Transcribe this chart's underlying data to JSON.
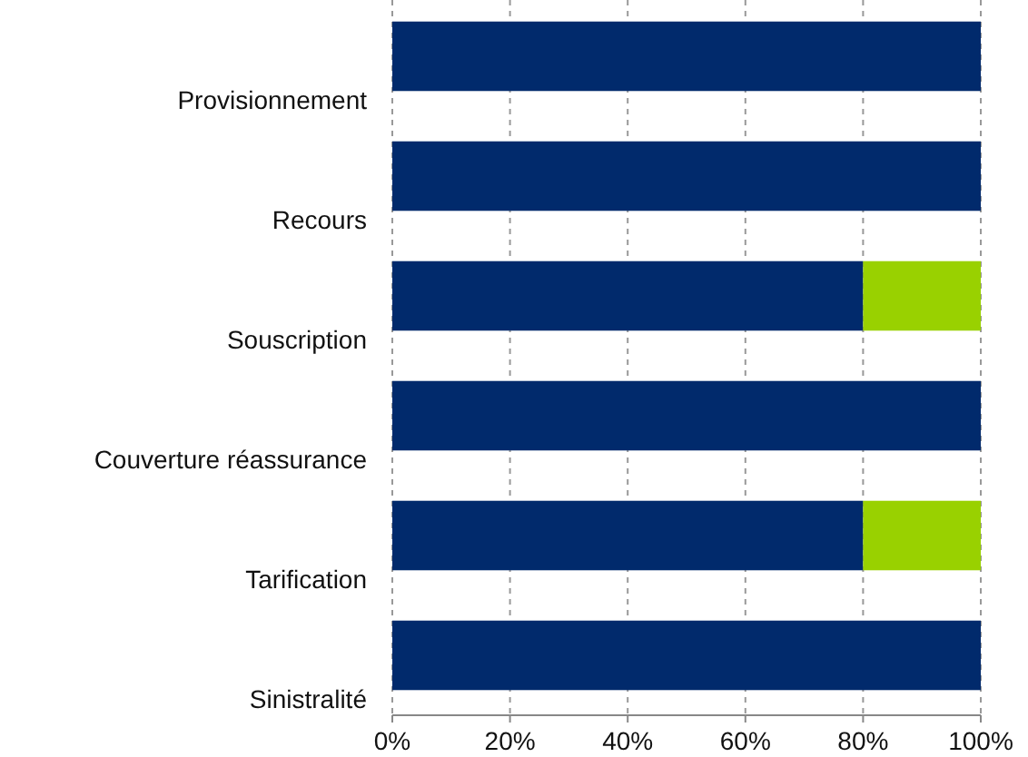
{
  "chart_data": {
    "type": "bar",
    "orientation": "horizontal",
    "stacked": true,
    "categories": [
      "Provisionnement",
      "Recours",
      "Souscription",
      "Couverture réassurance",
      "Tarification",
      "Sinistralité"
    ],
    "series": [
      {
        "color": "#012a6c",
        "values": [
          100,
          100,
          80,
          100,
          80,
          100
        ]
      },
      {
        "color": "#99d100",
        "values": [
          0,
          0,
          20,
          0,
          20,
          0
        ]
      }
    ],
    "xlim": [
      0,
      100
    ],
    "xticks": [
      {
        "value": 0,
        "label": "0%"
      },
      {
        "value": 20,
        "label": "20%"
      },
      {
        "value": 40,
        "label": "40%"
      },
      {
        "value": 60,
        "label": "60%"
      },
      {
        "value": 80,
        "label": "80%"
      },
      {
        "value": 100,
        "label": "100%"
      }
    ],
    "grid": "x"
  }
}
